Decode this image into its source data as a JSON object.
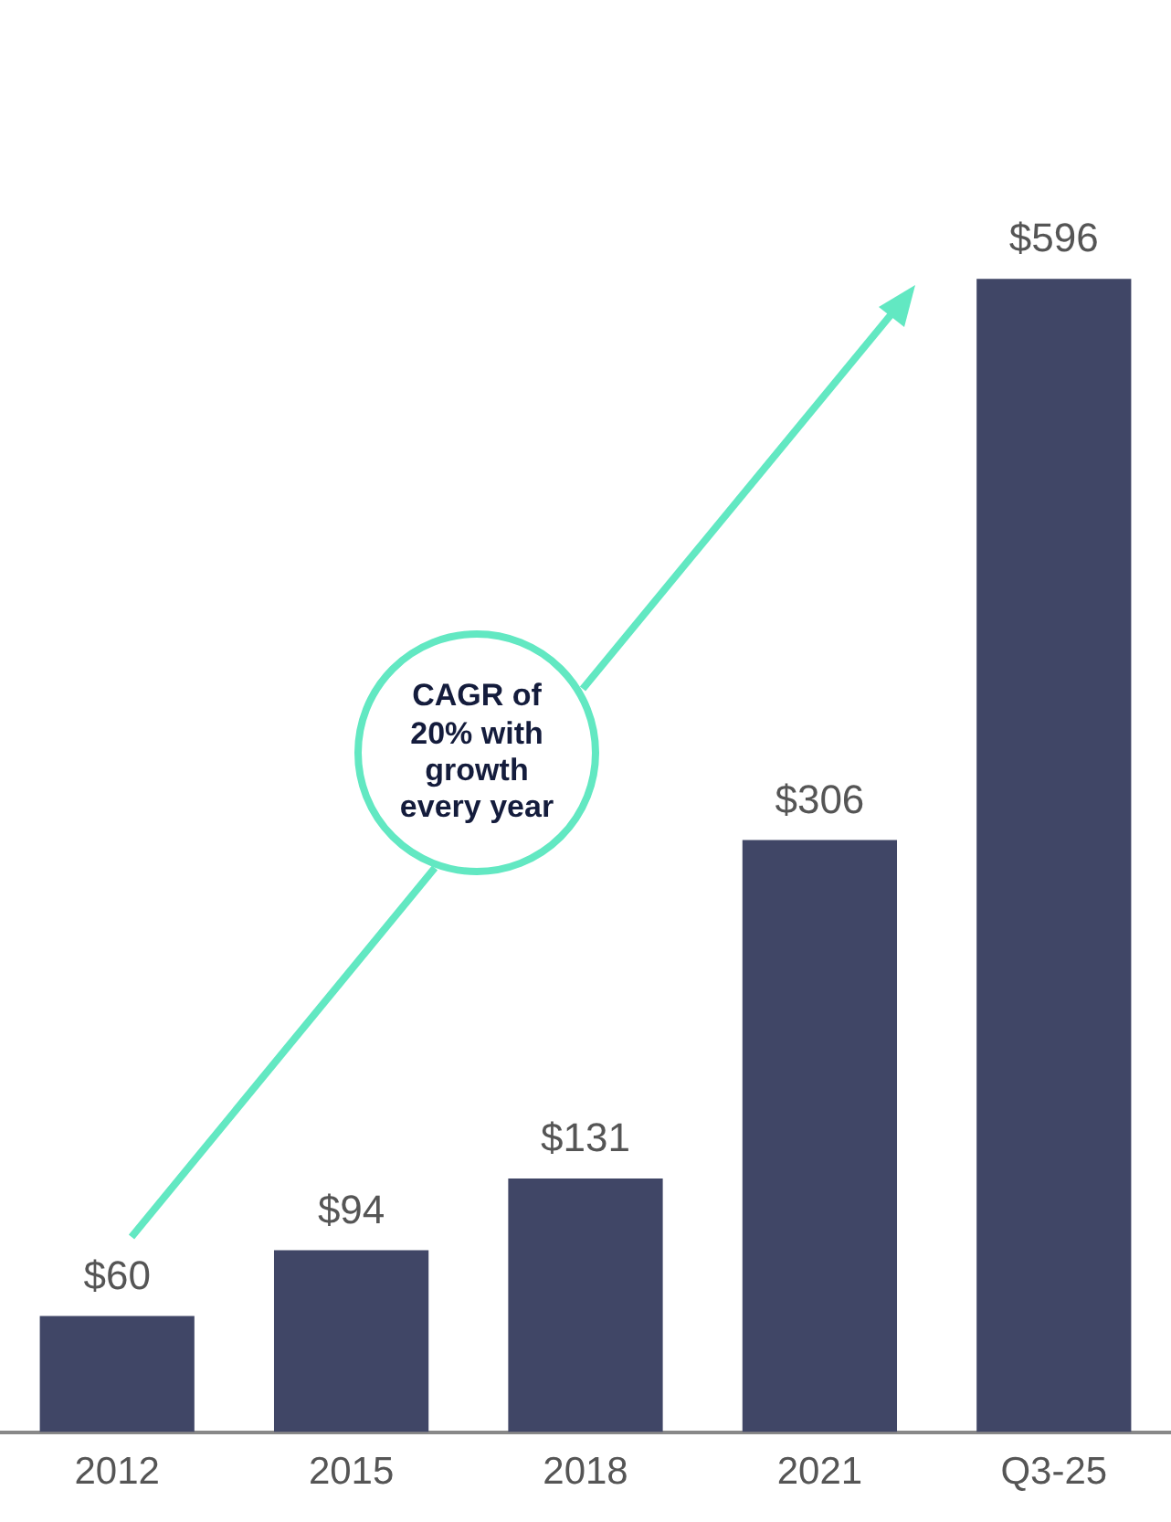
{
  "chart_data": {
    "type": "bar",
    "categories": [
      "2012",
      "2015",
      "2018",
      "2021",
      "Q3-25"
    ],
    "values": [
      60,
      94,
      131,
      306,
      596
    ],
    "value_labels": [
      "$60",
      "$94",
      "$131",
      "$306",
      "$596"
    ],
    "color": "#404666",
    "annotations": [
      "CAGR of 20% with growth every year"
    ],
    "grid": false,
    "legend": false
  }
}
